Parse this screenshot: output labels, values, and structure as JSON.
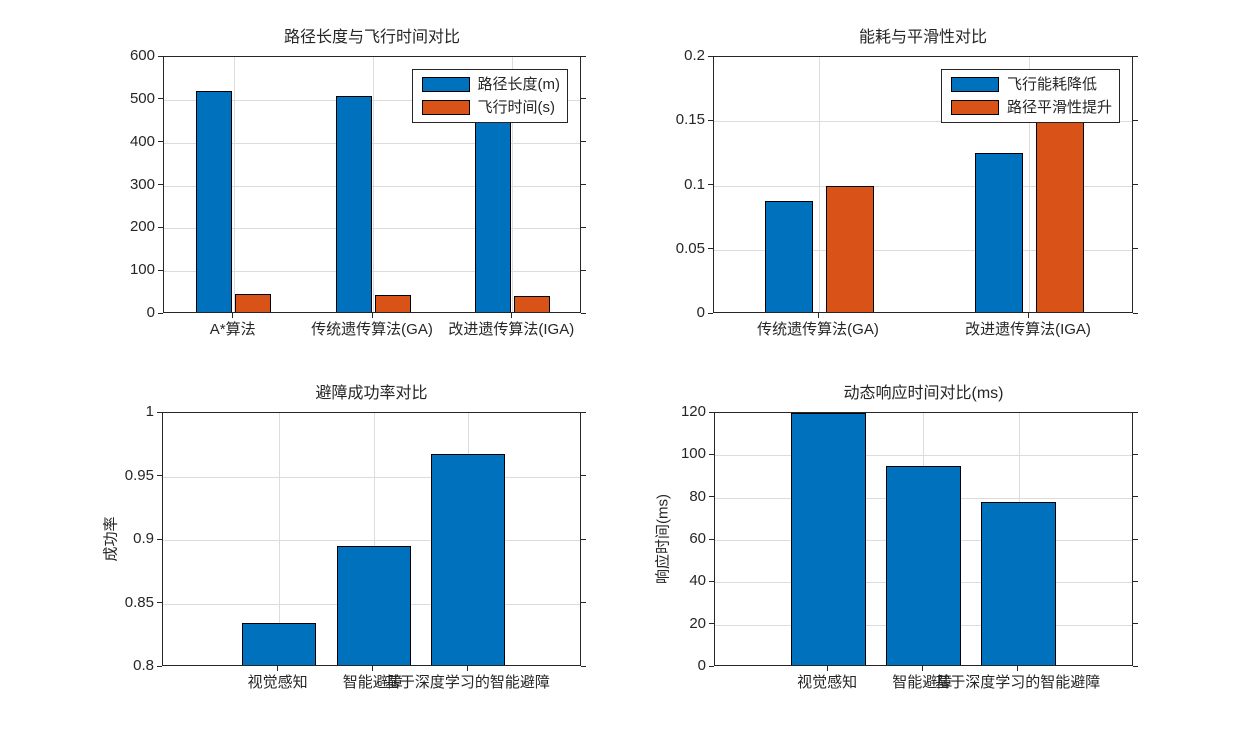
{
  "figure": {
    "background": "#ffffff",
    "description": "2x2 grid of MATLAB-style bar charts comparing UAV path planning algorithms"
  },
  "palette": {
    "series_blue": "#0072BD",
    "series_orange": "#D95319",
    "axis_color": "#262626",
    "grid_color": "#dcdcdc",
    "bar_edge_color": "#000000",
    "legend_border_color": "#262626",
    "legend_background": "#ffffff"
  },
  "chart_data": [
    {
      "type": "bar",
      "title": "路径长度与飞行时间对比",
      "categories": [
        "A*算法",
        "传统遗传算法(GA)",
        "改进遗传算法(IGA)"
      ],
      "series": [
        {
          "name": "路径长度(m)",
          "color": "#0072BD",
          "values": [
            520,
            510,
            455
          ]
        },
        {
          "name": "飞行时间(s)",
          "color": "#D95319",
          "values": [
            46,
            44,
            42
          ]
        }
      ],
      "xlabel": "",
      "ylabel": "",
      "ylim": [
        0,
        600
      ],
      "yticks": [
        {
          "value": 0,
          "label": "0"
        },
        {
          "value": 100,
          "label": "100"
        },
        {
          "value": 200,
          "label": "200"
        },
        {
          "value": 300,
          "label": "300"
        },
        {
          "value": 400,
          "label": "400"
        },
        {
          "value": 500,
          "label": "500"
        },
        {
          "value": 600,
          "label": "600"
        }
      ],
      "grid": true,
      "legend": {
        "show": true,
        "position": "top-right"
      }
    },
    {
      "type": "bar",
      "title": "能耗与平滑性对比",
      "categories": [
        "传统遗传算法(GA)",
        "改进遗传算法(IGA)"
      ],
      "series": [
        {
          "name": "飞行能耗降低",
          "color": "#0072BD",
          "values": [
            0.088,
            0.125
          ]
        },
        {
          "name": "路径平滑性提升",
          "color": "#D95319",
          "values": [
            0.1,
            0.152
          ]
        }
      ],
      "xlabel": "",
      "ylabel": "",
      "ylim": [
        0,
        0.2
      ],
      "yticks": [
        {
          "value": 0,
          "label": "0"
        },
        {
          "value": 0.05,
          "label": "0.05"
        },
        {
          "value": 0.1,
          "label": "0.1"
        },
        {
          "value": 0.15,
          "label": "0.15"
        },
        {
          "value": 0.2,
          "label": "0.2"
        }
      ],
      "grid": true,
      "legend": {
        "show": true,
        "position": "top-right"
      }
    },
    {
      "type": "bar",
      "title": "避障成功率对比",
      "categories": [
        "视觉感知",
        "智能避障",
        "基于深度学习的智能避障"
      ],
      "series": [
        {
          "name": "避障成功率",
          "color": "#0072BD",
          "values": [
            0.835,
            0.895,
            0.968
          ]
        }
      ],
      "xlabel": "",
      "ylabel": "成功率",
      "ylim": [
        0.8,
        1
      ],
      "yticks": [
        {
          "value": 0.8,
          "label": "0.8"
        },
        {
          "value": 0.85,
          "label": "0.85"
        },
        {
          "value": 0.9,
          "label": "0.9"
        },
        {
          "value": 0.95,
          "label": "0.95"
        },
        {
          "value": 1,
          "label": "1"
        }
      ],
      "grid": true,
      "legend": {
        "show": false
      }
    },
    {
      "type": "bar",
      "title": "动态响应时间对比(ms)",
      "categories": [
        "视觉感知",
        "智能避障",
        "基于深度学习的智能避障"
      ],
      "series": [
        {
          "name": "响应时间",
          "color": "#0072BD",
          "values": [
            120,
            95,
            78
          ]
        }
      ],
      "xlabel": "",
      "ylabel": "响应时间(ms)",
      "ylim": [
        0,
        120
      ],
      "yticks": [
        {
          "value": 0,
          "label": "0"
        },
        {
          "value": 20,
          "label": "20"
        },
        {
          "value": 40,
          "label": "40"
        },
        {
          "value": 60,
          "label": "60"
        },
        {
          "value": 80,
          "label": "80"
        },
        {
          "value": 100,
          "label": "100"
        },
        {
          "value": 120,
          "label": "120"
        }
      ],
      "grid": true,
      "legend": {
        "show": false
      }
    }
  ]
}
